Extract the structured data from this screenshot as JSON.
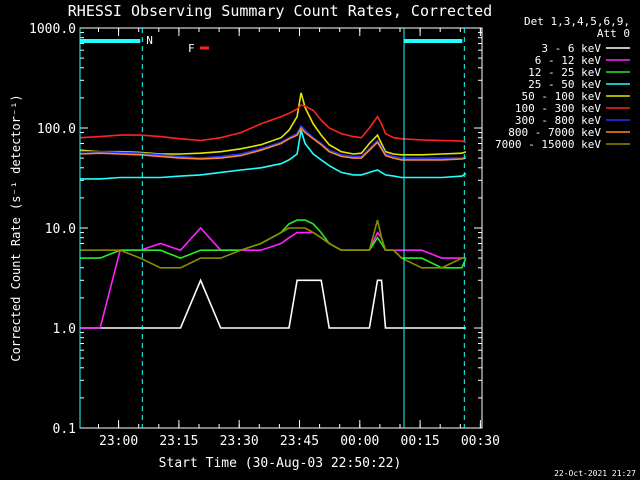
{
  "chart_data": {
    "type": "line",
    "title": "RHESSI Observing Summary Count Rates, Corrected",
    "xlabel": "Start Time (30-Aug-03 22:50:22)",
    "ylabel": "Corrected Count Rate (s⁻¹ detector⁻¹)",
    "yscale": "log",
    "ylim": [
      0.1,
      1000.0
    ],
    "yticks": [
      "0.1",
      "1.0",
      "10.0",
      "100.0",
      "1000.0"
    ],
    "xlim_minutes_after_start": [
      0,
      100
    ],
    "xticks": [
      {
        "label": "23:00",
        "minute": 9.6
      },
      {
        "label": "23:15",
        "minute": 24.6
      },
      {
        "label": "23:30",
        "minute": 39.6
      },
      {
        "label": "23:45",
        "minute": 54.6
      },
      {
        "label": "00:00",
        "minute": 69.6
      },
      {
        "label": "00:15",
        "minute": 84.6
      },
      {
        "label": "00:30",
        "minute": 99.6
      }
    ],
    "legend_header": [
      "Det 1,3,4,5,6,9,",
      "Att 0"
    ],
    "legend_position": "right",
    "annotations": {
      "flag_labels": [
        "N",
        "F"
      ],
      "night_intervals_minutes": [
        [
          0,
          15.5
        ],
        [
          80.6,
          95.6
        ]
      ],
      "footer_date": "22-Oct-2021 21:27"
    },
    "x": [
      0,
      5,
      10,
      15,
      20,
      25,
      30,
      35,
      40,
      45,
      50,
      52,
      54,
      55,
      56,
      58,
      60,
      62,
      65,
      68,
      70,
      72,
      74,
      75,
      76,
      78,
      80,
      85,
      90,
      95,
      96
    ],
    "series": [
      {
        "name": "3 - 6 keV",
        "color": "#ffffff",
        "values": [
          1,
          1,
          1,
          1,
          1,
          1,
          3,
          1,
          1,
          1,
          1,
          1,
          3,
          3,
          3,
          3,
          3,
          1,
          1,
          1,
          1,
          1,
          3,
          3,
          1,
          1,
          1,
          1,
          1,
          1,
          1
        ]
      },
      {
        "name": "6 - 12 keV",
        "color": "#ff22ff",
        "values": [
          1,
          1,
          6,
          6,
          7,
          6,
          10,
          6,
          6,
          6,
          7,
          8,
          9,
          9,
          9,
          9,
          8,
          7,
          6,
          6,
          6,
          6,
          9,
          8,
          6,
          6,
          6,
          6,
          5,
          5,
          5
        ]
      },
      {
        "name": "12 - 25 keV",
        "color": "#22ee22",
        "values": [
          5,
          5,
          6,
          6,
          6,
          5,
          6,
          6,
          6,
          7,
          9,
          11,
          12,
          12,
          12,
          11,
          9,
          7,
          6,
          6,
          6,
          6,
          8,
          7,
          6,
          6,
          5,
          5,
          4,
          4,
          5
        ]
      },
      {
        "name": "25 - 50 keV",
        "color": "#22ffff",
        "values": [
          31,
          31,
          32,
          32,
          32,
          33,
          34,
          36,
          38,
          40,
          44,
          48,
          55,
          95,
          70,
          55,
          48,
          42,
          36,
          34,
          34,
          36,
          38,
          36,
          34,
          33,
          32,
          32,
          32,
          33,
          35
        ]
      },
      {
        "name": "50 - 100 keV",
        "color": "#e5e500",
        "values": [
          60,
          58,
          58,
          57,
          55,
          55,
          56,
          58,
          62,
          68,
          80,
          95,
          130,
          225,
          160,
          110,
          85,
          68,
          58,
          55,
          56,
          70,
          85,
          70,
          58,
          55,
          54,
          54,
          55,
          56,
          58
        ]
      },
      {
        "name": "100 - 300 keV",
        "color": "#ff2222",
        "values": [
          80,
          82,
          85,
          85,
          82,
          78,
          75,
          80,
          90,
          110,
          130,
          140,
          155,
          170,
          165,
          150,
          120,
          100,
          88,
          82,
          80,
          100,
          130,
          110,
          88,
          80,
          78,
          76,
          75,
          74,
          72
        ]
      },
      {
        "name": "300 - 800 keV",
        "color": "#2233ff",
        "values": [
          58,
          58,
          57,
          56,
          54,
          52,
          50,
          52,
          55,
          62,
          72,
          80,
          88,
          105,
          95,
          80,
          70,
          60,
          54,
          52,
          52,
          62,
          75,
          65,
          55,
          52,
          50,
          50,
          50,
          50,
          52
        ]
      },
      {
        "name": "800 - 7000 keV",
        "color": "#ff8822",
        "values": [
          55,
          56,
          55,
          54,
          52,
          50,
          49,
          50,
          53,
          60,
          70,
          78,
          85,
          100,
          90,
          78,
          68,
          58,
          52,
          50,
          50,
          60,
          72,
          62,
          53,
          50,
          48,
          48,
          48,
          49,
          50
        ]
      },
      {
        "name": "7000 - 15000 keV",
        "color": "#8b8b00",
        "values": [
          6,
          6,
          6,
          5,
          4,
          4,
          5,
          5,
          6,
          7,
          9,
          10,
          10,
          10,
          10,
          9,
          8,
          7,
          6,
          6,
          6,
          6,
          12,
          8,
          6,
          6,
          5,
          4,
          4,
          5,
          5
        ]
      }
    ]
  }
}
